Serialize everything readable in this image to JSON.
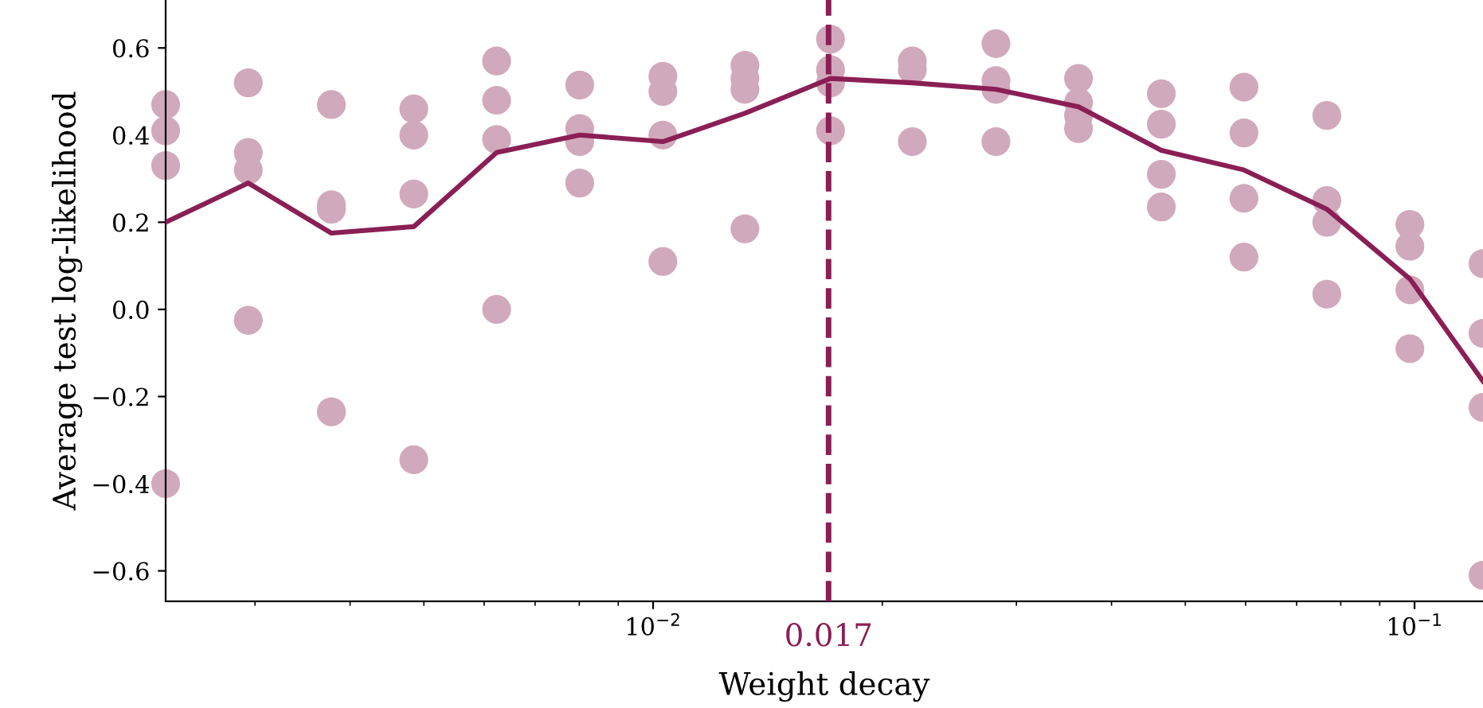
{
  "chart_data": {
    "type": "scatter",
    "xlabel": "Weight decay",
    "ylabel": "Average test log-likelihood",
    "log": "x",
    "grid": false,
    "legend": false,
    "marker": "circle",
    "xlim": [
      0.00229,
      0.123
    ],
    "ylim": [
      -0.67,
      0.71
    ],
    "xticks": [
      {
        "value": 0.01,
        "label": "10$^{−2}$"
      },
      {
        "value": 0.1,
        "label": "10$^{−1}$"
      }
    ],
    "yticks": [
      {
        "value": -0.6,
        "label": "−0.6"
      },
      {
        "value": -0.4,
        "label": "−0.4"
      },
      {
        "value": -0.2,
        "label": "−0.2"
      },
      {
        "value": 0.0,
        "label": "0.0"
      },
      {
        "value": 0.2,
        "label": "0.2"
      },
      {
        "value": 0.4,
        "label": "0.4"
      },
      {
        "value": 0.6,
        "label": "0.6"
      }
    ],
    "ref_lines": [
      {
        "axis": "x",
        "value": 0.017,
        "label": "0.017",
        "color": "#8a1f55",
        "line_style": "dashed"
      }
    ],
    "series": [
      {
        "color": "#d1a9bc",
        "x": [
          0.00229,
          0.00229,
          0.00229,
          0.00229,
          0.00294,
          0.00294,
          0.00294,
          0.00294,
          0.00378,
          0.00378,
          0.00378,
          0.00378,
          0.00485,
          0.00485,
          0.00485,
          0.00485,
          0.00623,
          0.00623,
          0.00623,
          0.00623,
          0.00801,
          0.00801,
          0.00801,
          0.00801,
          0.0103,
          0.0103,
          0.0103,
          0.0103,
          0.0132,
          0.0132,
          0.0132,
          0.0132,
          0.0171,
          0.0171,
          0.0171,
          0.0171,
          0.0219,
          0.0219,
          0.0219,
          0.0282,
          0.0282,
          0.0282,
          0.0282,
          0.0362,
          0.0362,
          0.0362,
          0.0362,
          0.0465,
          0.0465,
          0.0465,
          0.0465,
          0.0597,
          0.0597,
          0.0597,
          0.0597,
          0.0767,
          0.0767,
          0.0767,
          0.0767,
          0.0986,
          0.0986,
          0.0986,
          0.0986,
          0.123,
          0.123,
          0.123,
          0.123
        ],
        "values": [
          0.47,
          0.41,
          0.33,
          -0.4,
          0.52,
          0.36,
          0.32,
          -0.025,
          0.47,
          0.24,
          0.23,
          -0.235,
          0.46,
          0.4,
          0.265,
          -0.345,
          0.57,
          0.48,
          0.39,
          0.0,
          0.515,
          0.415,
          0.385,
          0.29,
          0.535,
          0.5,
          0.4,
          0.11,
          0.56,
          0.53,
          0.505,
          0.185,
          0.62,
          0.55,
          0.52,
          0.41,
          0.57,
          0.55,
          0.385,
          0.61,
          0.525,
          0.505,
          0.385,
          0.53,
          0.475,
          0.445,
          0.415,
          0.495,
          0.425,
          0.31,
          0.235,
          0.51,
          0.405,
          0.255,
          0.12,
          0.445,
          0.25,
          0.2,
          0.035,
          0.195,
          0.145,
          0.045,
          -0.09,
          0.105,
          -0.055,
          -0.225,
          -0.61
        ]
      },
      {
        "type": "line",
        "color": "#8a1f55",
        "marker": "none",
        "line_style": "solid",
        "x": [
          0.00229,
          0.00294,
          0.00378,
          0.00485,
          0.00623,
          0.00801,
          0.0103,
          0.0132,
          0.0171,
          0.0219,
          0.0282,
          0.0362,
          0.0465,
          0.0597,
          0.0767,
          0.0986,
          0.123
        ],
        "values": [
          0.2,
          0.29,
          0.175,
          0.19,
          0.36,
          0.4,
          0.385,
          0.45,
          0.53,
          0.52,
          0.505,
          0.465,
          0.365,
          0.32,
          0.23,
          0.07,
          -0.165
        ]
      }
    ]
  }
}
